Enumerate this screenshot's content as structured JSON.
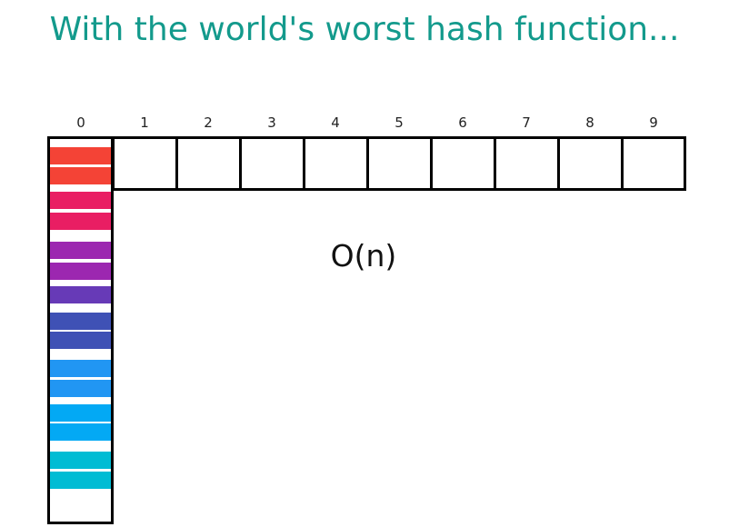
{
  "title": "With the world's worst hash function...",
  "complexity": "O(n)",
  "indices": [
    "0",
    "1",
    "2",
    "3",
    "4",
    "5",
    "6",
    "7",
    "8",
    "9"
  ],
  "colors": {
    "title": "#139a8c",
    "border": "#000000",
    "chain": [
      "#f44336",
      "#f44336",
      "#e91e63",
      "#e91e63",
      "#9c27b0",
      "#9c27b0",
      "#673ab7",
      "#3f51b5",
      "#3f51b5",
      "#2196f3",
      "#2196f3",
      "#03a9f4",
      "#03a9f4",
      "#00bcd4",
      "#00bcd4"
    ]
  }
}
